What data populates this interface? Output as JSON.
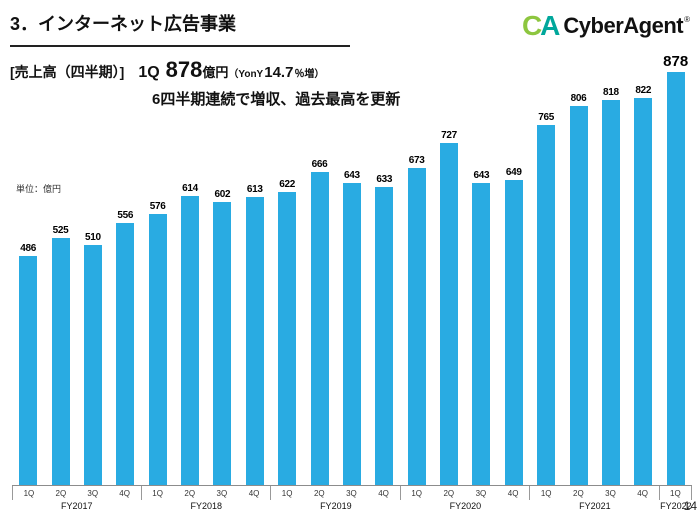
{
  "slide": {
    "title": "3．インターネット広告事業",
    "page_number": "14"
  },
  "logo": {
    "mark_c": "C",
    "mark_a": "A",
    "text": "CyberAgent",
    "registered": "®",
    "color_c": "#8dc63f",
    "color_a": "#00a79b",
    "color_text": "#111111"
  },
  "headline": {
    "label": "[売上高（四半期）]",
    "quarter": "1Q",
    "value": "878",
    "unit": "億円",
    "yoy_prefix": "（YonY",
    "yoy_value": "14.7",
    "yoy_suffix": "％増）",
    "line2": "6四半期連続で増収、過去最高を更新"
  },
  "chart_data": {
    "type": "bar",
    "title": "売上高（四半期）",
    "unit_label": "単位：億円",
    "xlabel": "",
    "ylabel": "億円",
    "ylim": [
      0,
      950
    ],
    "grid": false,
    "bar_color": "#29abe2",
    "axis_color": "#8c8c8c",
    "highlight_last": true,
    "groups": [
      {
        "year": "FY2017",
        "quarters": [
          "1Q",
          "2Q",
          "3Q",
          "4Q"
        ],
        "values": [
          486,
          525,
          510,
          556
        ]
      },
      {
        "year": "FY2018",
        "quarters": [
          "1Q",
          "2Q",
          "3Q",
          "4Q"
        ],
        "values": [
          576,
          614,
          602,
          613
        ]
      },
      {
        "year": "FY2019",
        "quarters": [
          "1Q",
          "2Q",
          "3Q",
          "4Q"
        ],
        "values": [
          622,
          666,
          643,
          633
        ]
      },
      {
        "year": "FY2020",
        "quarters": [
          "1Q",
          "2Q",
          "3Q",
          "4Q"
        ],
        "values": [
          673,
          727,
          643,
          649
        ]
      },
      {
        "year": "FY2021",
        "quarters": [
          "1Q",
          "2Q",
          "3Q",
          "4Q"
        ],
        "values": [
          765,
          806,
          818,
          822
        ]
      },
      {
        "year": "FY2022",
        "quarters": [
          "1Q"
        ],
        "values": [
          878
        ]
      }
    ]
  }
}
